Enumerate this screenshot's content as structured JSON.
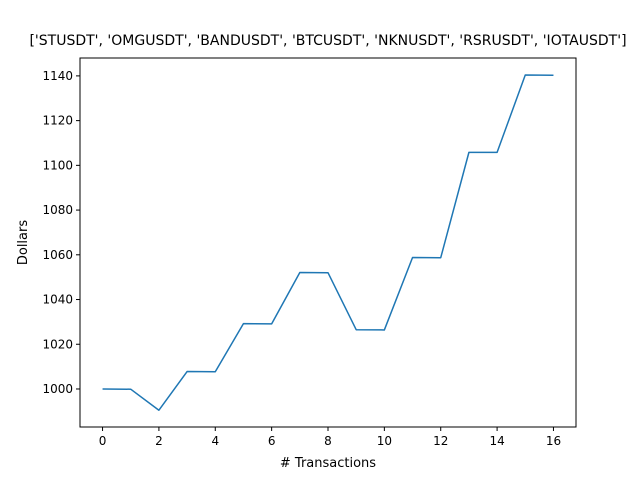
{
  "chart_data": {
    "type": "line",
    "title": "['STUSDT', 'OMGUSDT', 'BANDUSDT', 'BTCUSDT', 'NKNUSDT', 'RSRUSDT', 'IOTAUSDT']",
    "xlabel": "# Transactions",
    "ylabel": "Dollars",
    "xlim": [
      -0.8,
      16.8
    ],
    "ylim": [
      983,
      1148
    ],
    "xticks": [
      0,
      2,
      4,
      6,
      8,
      10,
      12,
      14,
      16
    ],
    "yticks": [
      1000,
      1020,
      1040,
      1060,
      1080,
      1100,
      1120,
      1140
    ],
    "grid": false,
    "series": [
      {
        "color": "#1f77b4",
        "x": [
          0,
          1,
          2,
          3,
          4,
          5,
          6,
          7,
          8,
          9,
          10,
          11,
          12,
          13,
          14,
          15,
          16
        ],
        "values": [
          1000,
          999.9,
          990.5,
          1007.8,
          1007.7,
          1029.2,
          1029.1,
          1052.1,
          1052.0,
          1026.5,
          1026.4,
          1058.8,
          1058.7,
          1105.8,
          1105.8,
          1140.4,
          1140.3
        ]
      }
    ]
  }
}
